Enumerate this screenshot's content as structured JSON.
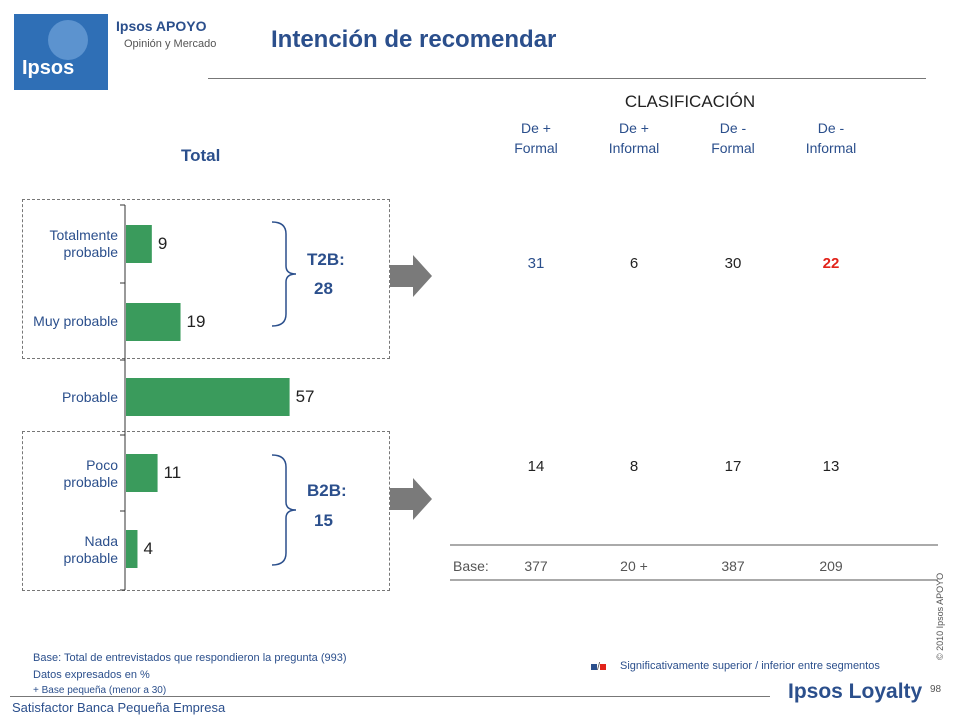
{
  "header": {
    "logo_text": "Ipsos",
    "brand": "Ipsos APOYO",
    "brand_sub": "Opinión y Mercado",
    "title": "Intención de recomendar"
  },
  "table": {
    "heading": "CLASIFICACIÓN",
    "columns": [
      "De +\nFormal",
      "De +\nInformal",
      "De -\nFormal",
      "De  -\nInformal"
    ],
    "t2b_row": [
      "31",
      "6",
      "30",
      "22"
    ],
    "b2b_row": [
      "14",
      "8",
      "17",
      "13"
    ],
    "base_label": "Base:",
    "base_row": [
      "377",
      "20 +",
      "387",
      "209"
    ]
  },
  "chart_data": {
    "type": "bar",
    "orientation": "horizontal",
    "title": "Total",
    "categories": [
      "Totalmente\nprobable",
      "Muy probable",
      "Probable",
      "Poco\nprobable",
      "Nada\nprobable"
    ],
    "values": [
      9,
      19,
      57,
      11,
      4
    ],
    "bar_color": "#3a9b5c",
    "xlim": [
      0,
      60
    ],
    "summaries": [
      {
        "label": "T2B:",
        "value": "28"
      },
      {
        "label": "B2B:",
        "value": "15"
      }
    ]
  },
  "notes": {
    "line1": "Base: Total de entrevistados que respondieron la pregunta (993)",
    "line2": "Datos expresados en %",
    "line3": "+ Base pequeña (menor a 30)"
  },
  "legend": {
    "separator": "/",
    "text": "Significativamente superior / inferior entre segmentos",
    "colors": [
      "#2b4f8c",
      "#e2231a"
    ]
  },
  "footer": {
    "study": "Satisfactor Banca Pequeña Empresa",
    "brand": "Ipsos Loyalty",
    "page": "98",
    "copyright": "© 2010 Ipsos APOYO"
  }
}
